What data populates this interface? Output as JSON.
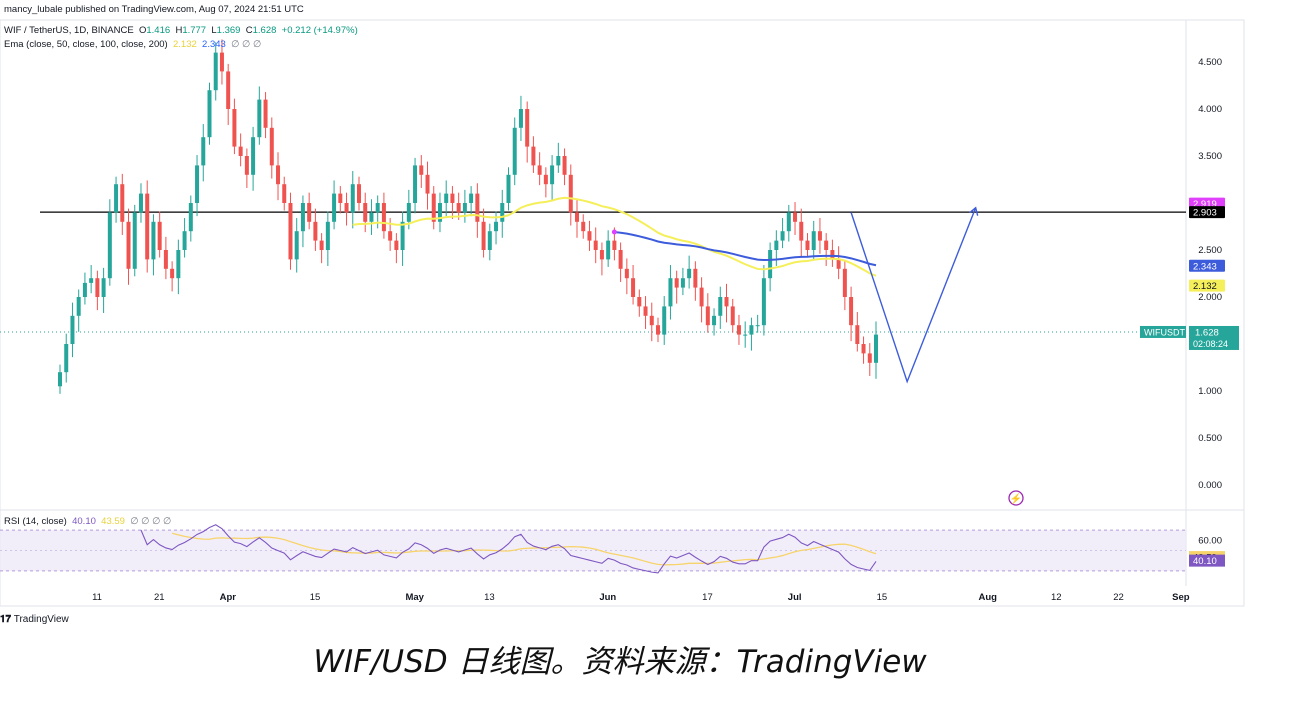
{
  "published": "mancy_lubale published on TradingView.com, Aug 07, 2024 21:51 UTC",
  "symbol_line": {
    "symbol": "WIF / TetherUS, 1D, BINANCE",
    "o_label": "O",
    "o": "1.416",
    "h_label": "H",
    "h": "1.777",
    "l_label": "L",
    "l": "1.369",
    "c_label": "C",
    "c": "1.628",
    "change": "+0.212 (+14.97%)"
  },
  "ema_line": {
    "label": "Ema (close, 50, close, 100, close, 200)",
    "v1": "2.132",
    "v2": "2.343",
    "rest": "∅ ∅ ∅"
  },
  "rsi_line": {
    "label": "RSI (14, close)",
    "v1": "40.10",
    "v2": "43.59",
    "rest": "∅ ∅ ∅ ∅"
  },
  "brand": "TradingView",
  "caption": "WIF/USD 日线图。资料来源：TradingView",
  "colors": {
    "up": "#26a69a",
    "down": "#ef5350",
    "ema50": "#f5ef5a",
    "ema100": "#3d5cdb",
    "rsi": "#7e57c2",
    "rsi_ma": "#f7d46b",
    "last": "#26a69a"
  },
  "chart_data": [
    {
      "type": "candlestick",
      "title": "WIF / TetherUS, 1D, BINANCE",
      "y_ticks": [
        "0.000",
        "0.500",
        "1.000",
        "1.500",
        "2.000",
        "2.500",
        "3.000",
        "3.500",
        "4.000",
        "4.500"
      ],
      "x_ticks": [
        {
          "label": "11",
          "day": 0
        },
        {
          "label": "21",
          "day": 10
        },
        {
          "label": "Apr",
          "day": 21
        },
        {
          "label": "15",
          "day": 35
        },
        {
          "label": "May",
          "day": 51
        },
        {
          "label": "13",
          "day": 63
        },
        {
          "label": "Jun",
          "day": 82
        },
        {
          "label": "17",
          "day": 98
        },
        {
          "label": "Jul",
          "day": 112
        },
        {
          "label": "15",
          "day": 126
        },
        {
          "label": "Aug",
          "day": 143
        },
        {
          "label": "12",
          "day": 154
        },
        {
          "label": "22",
          "day": 164
        },
        {
          "label": "Sep",
          "day": 174
        }
      ],
      "ylim": [
        0,
        5
      ],
      "closes": [
        1.2,
        1.5,
        1.8,
        2.0,
        2.15,
        2.2,
        2.0,
        2.2,
        2.9,
        3.2,
        2.8,
        2.3,
        2.9,
        3.1,
        2.4,
        2.8,
        2.5,
        2.3,
        2.2,
        2.5,
        2.7,
        3.0,
        3.4,
        3.7,
        4.2,
        4.6,
        4.4,
        4.0,
        3.6,
        3.5,
        3.3,
        3.7,
        4.1,
        3.8,
        3.4,
        3.2,
        3.0,
        2.4,
        2.7,
        3.0,
        2.8,
        2.6,
        2.5,
        2.8,
        3.1,
        3.0,
        2.9,
        3.2,
        3.0,
        2.8,
        2.9,
        3.0,
        2.7,
        2.6,
        2.5,
        2.8,
        3.0,
        3.4,
        3.3,
        3.1,
        2.8,
        3.0,
        3.1,
        3.0,
        2.9,
        3.0,
        3.1,
        2.8,
        2.5,
        2.7,
        2.8,
        3.0,
        3.3,
        3.8,
        4.0,
        3.6,
        3.4,
        3.3,
        3.2,
        3.4,
        3.5,
        3.3,
        2.9,
        2.8,
        2.7,
        2.6,
        2.5,
        2.4,
        2.6,
        2.5,
        2.3,
        2.2,
        2.0,
        1.9,
        1.8,
        1.7,
        1.6,
        1.9,
        2.2,
        2.1,
        2.2,
        2.3,
        2.1,
        1.9,
        1.7,
        1.8,
        2.0,
        1.9,
        1.7,
        1.6,
        1.6,
        1.7,
        1.7,
        2.2,
        2.5,
        2.6,
        2.7,
        2.9,
        2.8,
        2.6,
        2.5,
        2.7,
        2.6,
        2.5,
        2.4,
        2.3,
        2.0,
        1.7,
        1.5,
        1.4,
        1.3,
        1.6
      ],
      "series": [
        {
          "name": "Ema 50",
          "last": 2.132
        },
        {
          "name": "Ema 100",
          "last": 2.343
        }
      ],
      "horizontal_line": 2.903,
      "price_labels": [
        {
          "text": "2.919",
          "value": 2.919,
          "color": "#e040fb"
        },
        {
          "text": "2.903",
          "value": 2.903,
          "color": "#000000"
        },
        {
          "text": "2.343",
          "value": 2.343,
          "color": "#3d5cdb"
        },
        {
          "text": "2.132",
          "value": 2.132,
          "color": "#f5ef5a"
        },
        {
          "text": "1.628",
          "value": 1.628,
          "color": "#26a69a"
        }
      ],
      "last_symbol": "WIFUSDT",
      "countdown": "02:08:24",
      "projection": [
        {
          "day": 127,
          "value": 2.9
        },
        {
          "day": 136,
          "value": 1.1
        },
        {
          "day": 147,
          "value": 2.95
        }
      ]
    },
    {
      "type": "line",
      "title": "RSI (14, close)",
      "y_ticks": [
        "60.00"
      ],
      "band": [
        30,
        70
      ],
      "ylim": [
        25,
        80
      ],
      "last_rsi": 40.1,
      "last_ma": 43.59
    }
  ]
}
